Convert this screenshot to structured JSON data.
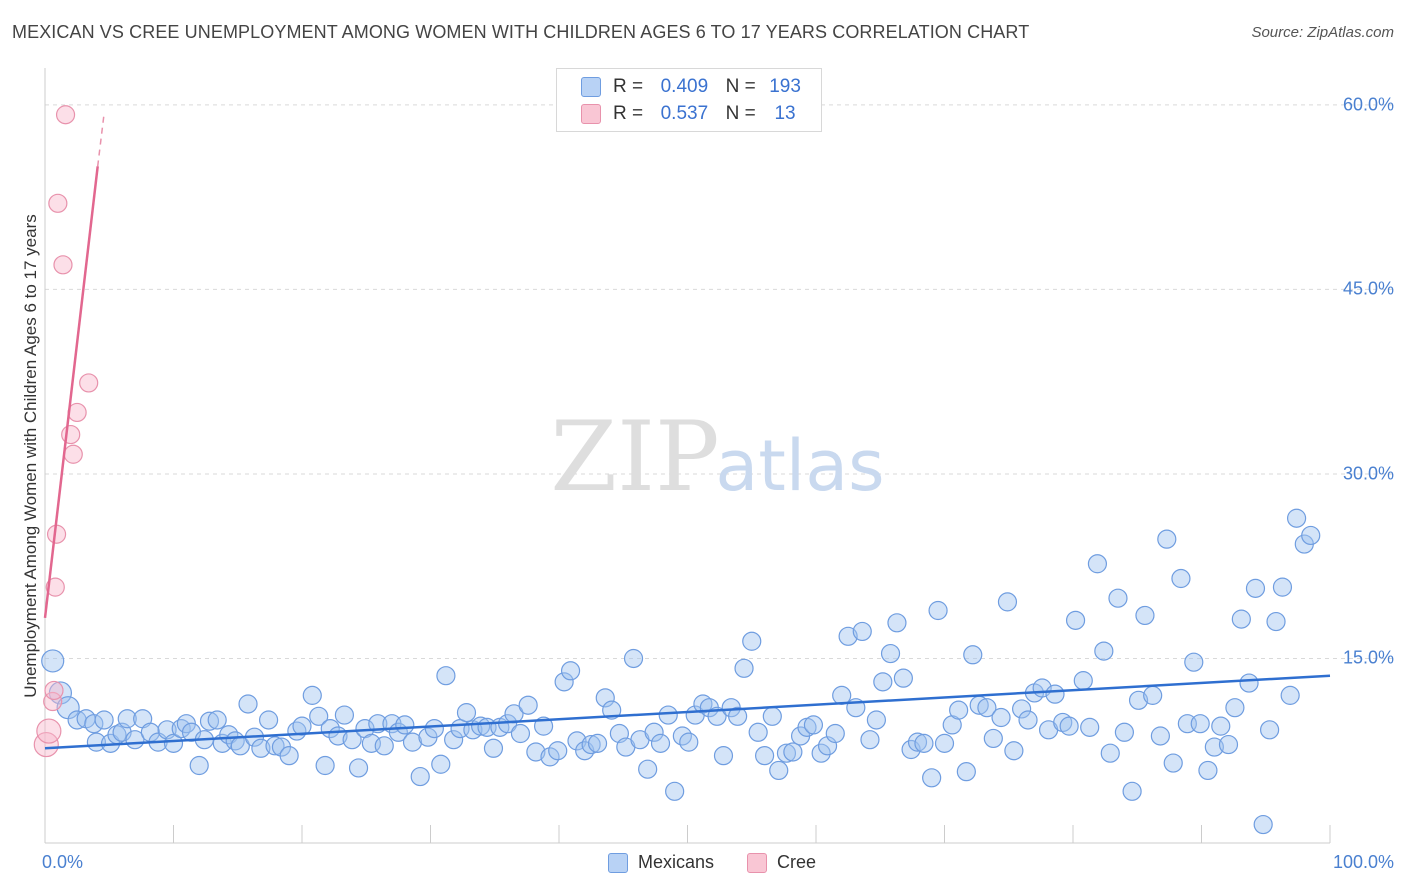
{
  "title": "MEXICAN VS CREE UNEMPLOYMENT AMONG WOMEN WITH CHILDREN AGES 6 TO 17 YEARS CORRELATION CHART",
  "source": "Source: ZipAtlas.com",
  "watermark": {
    "zip": "ZIP",
    "atlas": "atlas"
  },
  "legend_top": [
    {
      "r_label": "R =",
      "r_value": "0.409",
      "n_label": "N =",
      "n_value": "193",
      "color": "#6f9de0"
    },
    {
      "r_label": "R =",
      "r_value": "0.537",
      "n_label": "N =",
      "n_value": "13",
      "color": "#e892ac"
    }
  ],
  "legend_bottom": [
    {
      "label": "Mexicans",
      "color": "#6f9de0"
    },
    {
      "label": "Cree",
      "color": "#e892ac"
    }
  ],
  "chart_data": {
    "type": "scatter",
    "title": "MEXICAN VS CREE UNEMPLOYMENT AMONG WOMEN WITH CHILDREN AGES 6 TO 17 YEARS CORRELATION CHART",
    "xlabel": "",
    "ylabel": "Unemployment Among Women with Children Ages 6 to 17 years",
    "xlim": [
      0,
      100
    ],
    "ylim": [
      0,
      63
    ],
    "x_tick_labels": [
      "0.0%",
      "100.0%"
    ],
    "y_ticks": [
      15,
      30,
      45,
      60
    ],
    "y_tick_labels": [
      "15.0%",
      "30.0%",
      "45.0%",
      "60.0%"
    ],
    "grid": true,
    "series": [
      {
        "name": "Mexicans",
        "color": "#6f9de0",
        "trend": {
          "x0": 0,
          "y0": 7.7,
          "x1": 100,
          "y1": 13.6
        },
        "points": [
          [
            0.6,
            14.8
          ],
          [
            1.2,
            12.2
          ],
          [
            1.8,
            11.0
          ],
          [
            2.5,
            10.0
          ],
          [
            3.2,
            10.1
          ],
          [
            3.8,
            9.7
          ],
          [
            4.0,
            8.2
          ],
          [
            4.6,
            10.0
          ],
          [
            5.1,
            8.1
          ],
          [
            5.6,
            8.8
          ],
          [
            6.0,
            9.0
          ],
          [
            6.4,
            10.1
          ],
          [
            7.0,
            8.4
          ],
          [
            7.6,
            10.1
          ],
          [
            8.2,
            9.0
          ],
          [
            8.8,
            8.2
          ],
          [
            9.5,
            9.2
          ],
          [
            10.0,
            8.1
          ],
          [
            10.6,
            9.3
          ],
          [
            11.0,
            9.7
          ],
          [
            11.4,
            9.0
          ],
          [
            12.0,
            6.3
          ],
          [
            12.4,
            8.4
          ],
          [
            12.8,
            9.9
          ],
          [
            13.4,
            10.0
          ],
          [
            13.8,
            8.1
          ],
          [
            14.3,
            8.8
          ],
          [
            14.8,
            8.3
          ],
          [
            15.2,
            7.9
          ],
          [
            15.8,
            11.3
          ],
          [
            16.3,
            8.6
          ],
          [
            16.8,
            7.7
          ],
          [
            17.4,
            10.0
          ],
          [
            17.9,
            7.9
          ],
          [
            18.4,
            7.8
          ],
          [
            19.0,
            7.1
          ],
          [
            19.6,
            9.1
          ],
          [
            20.0,
            9.5
          ],
          [
            20.8,
            12.0
          ],
          [
            21.3,
            10.3
          ],
          [
            21.8,
            6.3
          ],
          [
            22.2,
            9.3
          ],
          [
            22.8,
            8.7
          ],
          [
            23.3,
            10.4
          ],
          [
            23.9,
            8.4
          ],
          [
            24.4,
            6.1
          ],
          [
            24.9,
            9.3
          ],
          [
            25.4,
            8.1
          ],
          [
            25.9,
            9.7
          ],
          [
            26.4,
            7.9
          ],
          [
            27.0,
            9.7
          ],
          [
            27.5,
            9.0
          ],
          [
            28.0,
            9.6
          ],
          [
            28.6,
            8.2
          ],
          [
            29.2,
            5.4
          ],
          [
            29.8,
            8.6
          ],
          [
            30.3,
            9.3
          ],
          [
            30.8,
            6.4
          ],
          [
            31.2,
            13.6
          ],
          [
            31.8,
            8.4
          ],
          [
            32.3,
            9.3
          ],
          [
            32.8,
            10.6
          ],
          [
            33.3,
            9.2
          ],
          [
            33.9,
            9.5
          ],
          [
            34.4,
            9.4
          ],
          [
            34.9,
            7.7
          ],
          [
            35.4,
            9.4
          ],
          [
            36.0,
            9.7
          ],
          [
            36.5,
            10.5
          ],
          [
            37.0,
            8.9
          ],
          [
            37.6,
            11.2
          ],
          [
            38.2,
            7.4
          ],
          [
            38.8,
            9.5
          ],
          [
            39.3,
            7.0
          ],
          [
            39.9,
            7.5
          ],
          [
            40.4,
            13.1
          ],
          [
            40.9,
            14.0
          ],
          [
            41.4,
            8.3
          ],
          [
            42.0,
            7.5
          ],
          [
            42.5,
            8.0
          ],
          [
            43.0,
            8.1
          ],
          [
            43.6,
            11.8
          ],
          [
            44.1,
            10.8
          ],
          [
            44.7,
            8.9
          ],
          [
            45.2,
            7.8
          ],
          [
            45.8,
            15.0
          ],
          [
            46.3,
            8.4
          ],
          [
            46.9,
            6.0
          ],
          [
            47.4,
            9.0
          ],
          [
            47.9,
            8.1
          ],
          [
            48.5,
            10.4
          ],
          [
            49.0,
            4.2
          ],
          [
            49.6,
            8.7
          ],
          [
            50.1,
            8.2
          ],
          [
            50.6,
            10.4
          ],
          [
            51.2,
            11.3
          ],
          [
            51.7,
            11.0
          ],
          [
            52.3,
            10.3
          ],
          [
            52.8,
            7.1
          ],
          [
            53.4,
            11.0
          ],
          [
            53.9,
            10.3
          ],
          [
            54.4,
            14.2
          ],
          [
            55.0,
            16.4
          ],
          [
            55.5,
            9.0
          ],
          [
            56.0,
            7.1
          ],
          [
            56.6,
            10.3
          ],
          [
            57.1,
            5.9
          ],
          [
            57.7,
            7.3
          ],
          [
            58.2,
            7.4
          ],
          [
            58.8,
            8.7
          ],
          [
            59.3,
            9.4
          ],
          [
            59.8,
            9.6
          ],
          [
            60.4,
            7.3
          ],
          [
            60.9,
            7.9
          ],
          [
            61.5,
            8.9
          ],
          [
            62.0,
            12.0
          ],
          [
            62.5,
            16.8
          ],
          [
            63.1,
            11.0
          ],
          [
            63.6,
            17.2
          ],
          [
            64.2,
            8.4
          ],
          [
            64.7,
            10.0
          ],
          [
            65.2,
            13.1
          ],
          [
            65.8,
            15.4
          ],
          [
            66.3,
            17.9
          ],
          [
            66.8,
            13.4
          ],
          [
            67.4,
            7.6
          ],
          [
            67.9,
            8.2
          ],
          [
            68.4,
            8.1
          ],
          [
            69.0,
            5.3
          ],
          [
            69.5,
            18.9
          ],
          [
            70.0,
            8.1
          ],
          [
            70.6,
            9.6
          ],
          [
            71.1,
            10.8
          ],
          [
            71.7,
            5.8
          ],
          [
            72.2,
            15.3
          ],
          [
            72.7,
            11.2
          ],
          [
            73.3,
            11.0
          ],
          [
            73.8,
            8.5
          ],
          [
            74.4,
            10.2
          ],
          [
            74.9,
            19.6
          ],
          [
            75.4,
            7.5
          ],
          [
            76.0,
            10.9
          ],
          [
            76.5,
            10.0
          ],
          [
            77.0,
            12.2
          ],
          [
            77.6,
            12.6
          ],
          [
            78.1,
            9.2
          ],
          [
            78.6,
            12.1
          ],
          [
            79.2,
            9.8
          ],
          [
            79.7,
            9.5
          ],
          [
            80.2,
            18.1
          ],
          [
            80.8,
            13.2
          ],
          [
            81.3,
            9.4
          ],
          [
            81.9,
            22.7
          ],
          [
            82.4,
            15.6
          ],
          [
            82.9,
            7.3
          ],
          [
            83.5,
            19.9
          ],
          [
            84.0,
            9.0
          ],
          [
            84.6,
            4.2
          ],
          [
            85.1,
            11.6
          ],
          [
            85.6,
            18.5
          ],
          [
            86.2,
            12.0
          ],
          [
            86.8,
            8.7
          ],
          [
            87.3,
            24.7
          ],
          [
            87.8,
            6.5
          ],
          [
            88.4,
            21.5
          ],
          [
            88.9,
            9.7
          ],
          [
            89.4,
            14.7
          ],
          [
            89.9,
            9.7
          ],
          [
            90.5,
            5.9
          ],
          [
            91.0,
            7.8
          ],
          [
            91.5,
            9.5
          ],
          [
            92.1,
            8.0
          ],
          [
            92.6,
            11.0
          ],
          [
            93.1,
            18.2
          ],
          [
            93.7,
            13.0
          ],
          [
            94.2,
            20.7
          ],
          [
            94.8,
            1.5
          ],
          [
            95.3,
            9.2
          ],
          [
            95.8,
            18.0
          ],
          [
            96.3,
            20.8
          ],
          [
            96.9,
            12.0
          ],
          [
            97.4,
            26.4
          ],
          [
            98.0,
            24.3
          ],
          [
            98.5,
            25.0
          ]
        ]
      },
      {
        "name": "Cree",
        "color": "#e892ac",
        "trend": {
          "x0": 0,
          "y0": 18.3,
          "x1": 4.1,
          "y1": 55.0
        },
        "trend_dashed": {
          "x0": 4.1,
          "y0": 55.0,
          "x1": 4.6,
          "y1": 59.3
        },
        "points": [
          [
            0.1,
            8.0
          ],
          [
            0.3,
            9.1
          ],
          [
            0.6,
            11.5
          ],
          [
            0.7,
            12.4
          ],
          [
            0.8,
            20.8
          ],
          [
            0.9,
            25.1
          ],
          [
            1.0,
            52.0
          ],
          [
            1.4,
            47.0
          ],
          [
            1.6,
            59.2
          ],
          [
            2.0,
            33.2
          ],
          [
            2.2,
            31.6
          ],
          [
            2.5,
            35.0
          ],
          [
            3.4,
            37.4
          ]
        ]
      }
    ]
  }
}
